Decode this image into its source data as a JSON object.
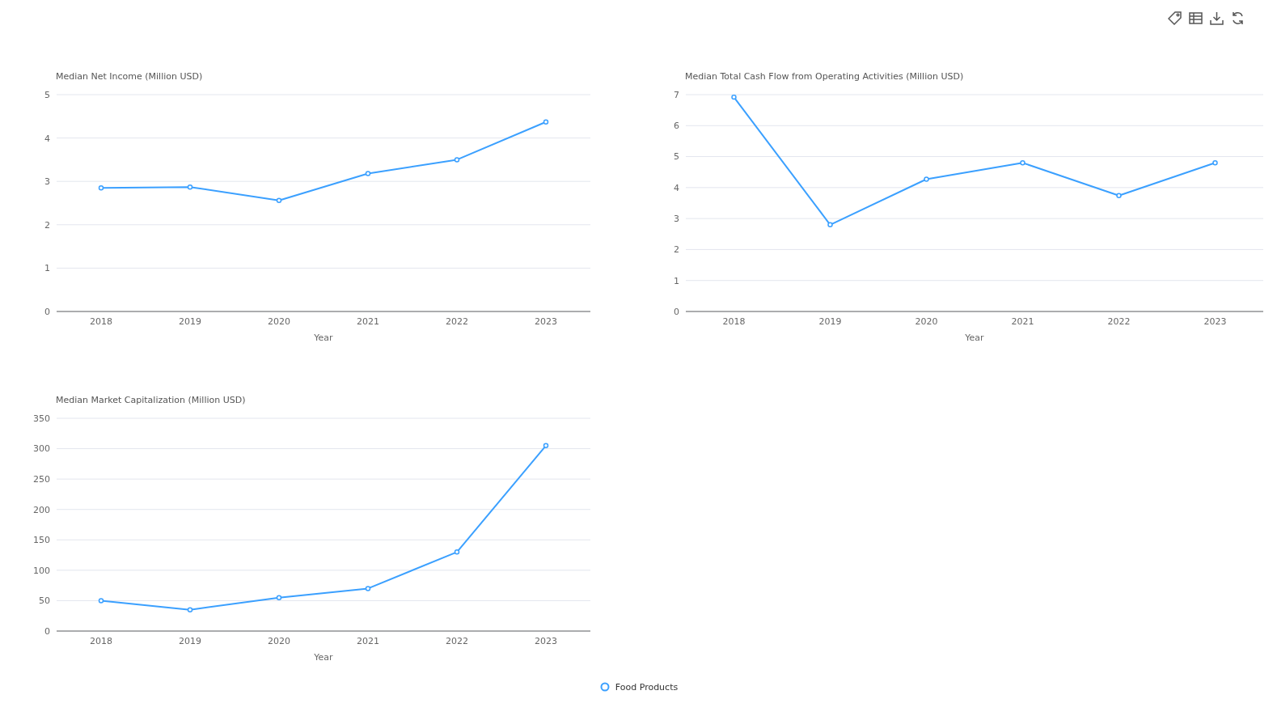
{
  "chart_data": [
    {
      "type": "line",
      "ylabel": "Median Net Income (Million USD)",
      "xlabel": "Year",
      "categories": [
        "2018",
        "2019",
        "2020",
        "2021",
        "2022",
        "2023"
      ],
      "series": [
        {
          "color": "#3ba0ff",
          "values": [
            2.85,
            2.87,
            2.56,
            3.18,
            3.5,
            4.37
          ]
        }
      ],
      "ylim": [
        0,
        5
      ],
      "yticks": [
        0,
        1,
        2,
        3,
        4,
        5
      ],
      "grid": "y",
      "marker": "circle"
    },
    {
      "type": "line",
      "ylabel": "Median Total Cash Flow from Operating Activities (Million USD)",
      "xlabel": "Year",
      "categories": [
        "2018",
        "2019",
        "2020",
        "2021",
        "2022",
        "2023"
      ],
      "series": [
        {
          "color": "#3ba0ff",
          "values": [
            6.92,
            2.8,
            4.27,
            4.8,
            3.74,
            4.8
          ]
        }
      ],
      "ylim": [
        0,
        7
      ],
      "yticks": [
        0,
        1,
        2,
        3,
        4,
        5,
        6,
        7
      ],
      "grid": "y",
      "marker": "circle"
    },
    {
      "type": "line",
      "ylabel": "Median Market Capitalization (Million USD)",
      "xlabel": "Year",
      "categories": [
        "2018",
        "2019",
        "2020",
        "2021",
        "2022",
        "2023"
      ],
      "series": [
        {
          "name": "Food Products",
          "color": "#3ba0ff",
          "values": [
            50,
            35,
            55,
            70,
            130,
            305
          ]
        }
      ],
      "ylim": [
        0,
        350
      ],
      "yticks": [
        0,
        50,
        100,
        150,
        200,
        250,
        300,
        350
      ],
      "grid": "y",
      "marker": "circle",
      "legend": "bottom"
    }
  ]
}
